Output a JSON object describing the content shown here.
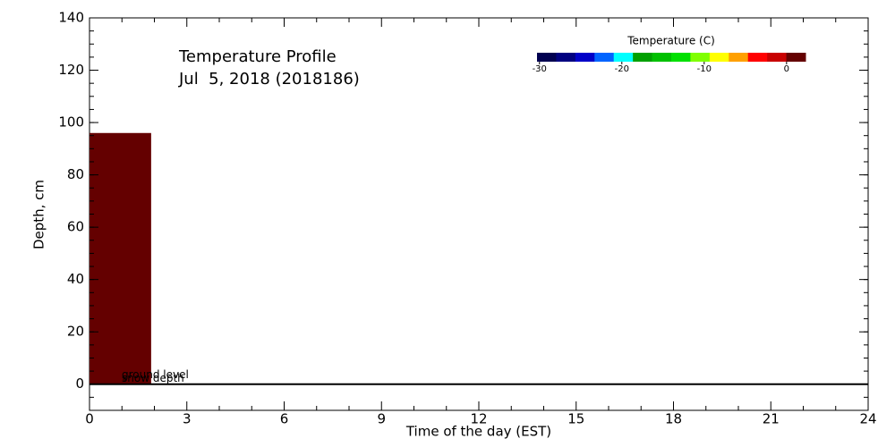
{
  "chart_data": {
    "type": "profile",
    "title": "Temperature Profile",
    "subtitle": "Jul  5, 2018 (2018186)",
    "x_label": "Time of the day (EST)",
    "y_label": "Depth, cm",
    "xlim": [
      0,
      24
    ],
    "xticks": [
      0,
      3,
      6,
      9,
      12,
      15,
      18,
      21,
      24
    ],
    "ylim": [
      -10,
      140
    ],
    "yticks": [
      0,
      20,
      40,
      60,
      80,
      100,
      120,
      140
    ],
    "series": [
      {
        "x": [
          0,
          1.9
        ],
        "depth": 96,
        "color": "#640000"
      }
    ],
    "ground_level": 0,
    "annotations": [
      "ground level",
      "snow depth"
    ],
    "colorbar": {
      "label": "Temperature (C)",
      "lim": [
        -30.3,
        2.3
      ],
      "ticks": [
        -30,
        -20,
        -10,
        0
      ],
      "colors": [
        "#000050",
        "#000080",
        "#0000c8",
        "#0064ff",
        "#00ffff",
        "#00a000",
        "#00c000",
        "#00e000",
        "#80ff00",
        "#ffff00",
        "#ffa000",
        "#ff0000",
        "#c80000",
        "#640000"
      ]
    }
  }
}
